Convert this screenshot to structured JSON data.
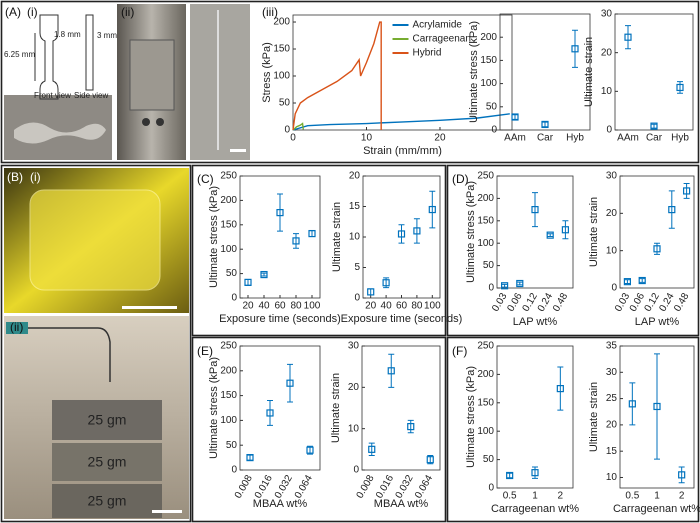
{
  "labels": [
    "(A)",
    "(i)",
    "(ii)",
    "(iii)",
    "(B)",
    "(i)",
    "(ii)",
    "(C)",
    "(D)",
    "(E)",
    "(F)"
  ],
  "photos": {
    "dimensions": [
      "6.25 mm",
      "1.8 mm",
      "3 mm"
    ],
    "views": [
      "Front view",
      "Side view"
    ],
    "weights": [
      "25 gm",
      "25 gm",
      "25 gm"
    ]
  },
  "chart_data": [
    {
      "type": "line",
      "xlabel": "Strain (mm/mm)",
      "ylabel": "Stress (kPa)",
      "xlim": [
        0,
        29.8
      ],
      "xticks": [
        0,
        10,
        20
      ],
      "ylim": [
        0,
        213
      ],
      "yticks": [
        0,
        50,
        100,
        150,
        200
      ],
      "legend": "upper center",
      "series": [
        {
          "name": "Acrylamide",
          "color": "#0072bd",
          "x": [
            0,
            2,
            5,
            10,
            15,
            20,
            25,
            29.5
          ],
          "values": [
            0,
            8,
            10,
            12,
            15,
            18,
            22,
            30
          ]
        },
        {
          "name": "Carrageenan",
          "color": "#77ac30",
          "x": [
            0,
            0.5,
            1,
            1.3,
            1.4
          ],
          "values": [
            0,
            6,
            9,
            12,
            1
          ]
        },
        {
          "name": "Hybrid",
          "color": "#d95319",
          "x": [
            0,
            0.3,
            1,
            2,
            4,
            6,
            8,
            9,
            9.2,
            10,
            11,
            11.8,
            12,
            12
          ],
          "values": [
            0,
            30,
            50,
            60,
            75,
            90,
            110,
            130,
            100,
            125,
            160,
            200,
            200,
            0
          ]
        }
      ]
    },
    {
      "type": "errorbar",
      "ylabel": "Ultimate stress (kPa)",
      "categories": [
        "AAm",
        "Car",
        "Hyb"
      ],
      "values": [
        28,
        12,
        175
      ],
      "errors": [
        5,
        5,
        40
      ],
      "color": "#0072bd",
      "ylim": [
        0,
        250
      ],
      "yticks": [
        0,
        50,
        100,
        150,
        200
      ]
    },
    {
      "type": "errorbar",
      "ylabel": "Ultimate strain",
      "categories": [
        "AAm",
        "Car",
        "Hyb"
      ],
      "values": [
        24,
        1,
        11
      ],
      "errors": [
        3,
        0.5,
        1.5
      ],
      "color": "#0072bd",
      "ylim": [
        0,
        30
      ],
      "yticks": [
        0,
        10,
        20,
        30
      ]
    },
    {
      "type": "errorbar",
      "xlabel": "Exposure time (seconds)",
      "ylabel": "Ultimate stress (kPa)",
      "x": [
        20,
        40,
        60,
        80,
        100
      ],
      "values": [
        32,
        48,
        175,
        117,
        132
      ],
      "errors": [
        6,
        3,
        38,
        15,
        6
      ],
      "color": "#0072bd",
      "xlim": [
        10,
        110
      ],
      "xticks": [
        20,
        40,
        60,
        80,
        100
      ],
      "ylim": [
        0,
        250
      ],
      "yticks": [
        0,
        50,
        100,
        150,
        200,
        250
      ]
    },
    {
      "type": "errorbar",
      "xlabel": "Exposure time (seconds)",
      "ylabel": "Ultimate strain",
      "x": [
        20,
        40,
        60,
        80,
        100
      ],
      "values": [
        1,
        2.5,
        10.5,
        11,
        14.5
      ],
      "errors": [
        0.5,
        0.8,
        1.5,
        2,
        3
      ],
      "color": "#0072bd",
      "xlim": [
        10,
        110
      ],
      "xticks": [
        20,
        40,
        60,
        80,
        100
      ],
      "ylim": [
        0,
        20
      ],
      "yticks": [
        0,
        5,
        10,
        15,
        20
      ]
    },
    {
      "type": "errorbar",
      "xlabel": "LAP wt%",
      "ylabel": "Ultimate stress (kPa)",
      "categories": [
        "0.03",
        "0.06",
        "0.12",
        "0.24",
        "0.48"
      ],
      "values": [
        5,
        10,
        175,
        118,
        130
      ],
      "errors": [
        3,
        3,
        38,
        3,
        20
      ],
      "color": "#0072bd",
      "ylim": [
        0,
        250
      ],
      "yticks": [
        0,
        50,
        100,
        150,
        200,
        250
      ]
    },
    {
      "type": "errorbar",
      "xlabel": "LAP wt%",
      "ylabel": "Ultimate strain",
      "categories": [
        "0.03",
        "0.06",
        "0.12",
        "0.24",
        "0.48"
      ],
      "values": [
        1.7,
        2,
        10.5,
        21,
        26
      ],
      "errors": [
        0.5,
        0.5,
        1.5,
        5,
        2
      ],
      "color": "#0072bd",
      "ylim": [
        0,
        30
      ],
      "yticks": [
        0,
        10,
        20,
        30
      ]
    },
    {
      "type": "errorbar",
      "xlabel": "MBAA wt%",
      "ylabel": "Ultimate stress (kPa)",
      "categories": [
        "0.008",
        "0.016",
        "0.032",
        "0.064"
      ],
      "values": [
        25,
        115,
        175,
        40
      ],
      "errors": [
        5,
        25,
        38,
        8
      ],
      "color": "#0072bd",
      "ylim": [
        0,
        250
      ],
      "yticks": [
        0,
        50,
        100,
        150,
        200,
        250
      ]
    },
    {
      "type": "errorbar",
      "xlabel": "MBAA wt%",
      "ylabel": "Ultimate strain",
      "categories": [
        "0.008",
        "0.016",
        "0.032",
        "0.064"
      ],
      "values": [
        5,
        24,
        10.5,
        2.5
      ],
      "errors": [
        1.5,
        4,
        1.5,
        1
      ],
      "color": "#0072bd",
      "ylim": [
        0,
        30
      ],
      "yticks": [
        0,
        10,
        20,
        30
      ]
    },
    {
      "type": "errorbar",
      "xlabel": "Carrageenan wt%",
      "ylabel": "Ultimate stress (kPa)",
      "categories": [
        "0.5",
        "1",
        "2"
      ],
      "values": [
        22,
        27,
        175
      ],
      "errors": [
        4,
        10,
        38
      ],
      "color": "#0072bd",
      "ylim": [
        0,
        250
      ],
      "yticks": [
        0,
        50,
        100,
        150,
        200,
        250
      ]
    },
    {
      "type": "errorbar",
      "xlabel": "Carrageenan wt%",
      "ylabel": "Ultimate strain",
      "categories": [
        "0.5",
        "1",
        "2"
      ],
      "values": [
        24,
        23.5,
        10.5
      ],
      "errors": [
        4,
        10,
        1.5
      ],
      "color": "#0072bd",
      "ylim": [
        8,
        35
      ],
      "yticks": [
        10,
        15,
        20,
        25,
        30,
        35
      ]
    }
  ]
}
